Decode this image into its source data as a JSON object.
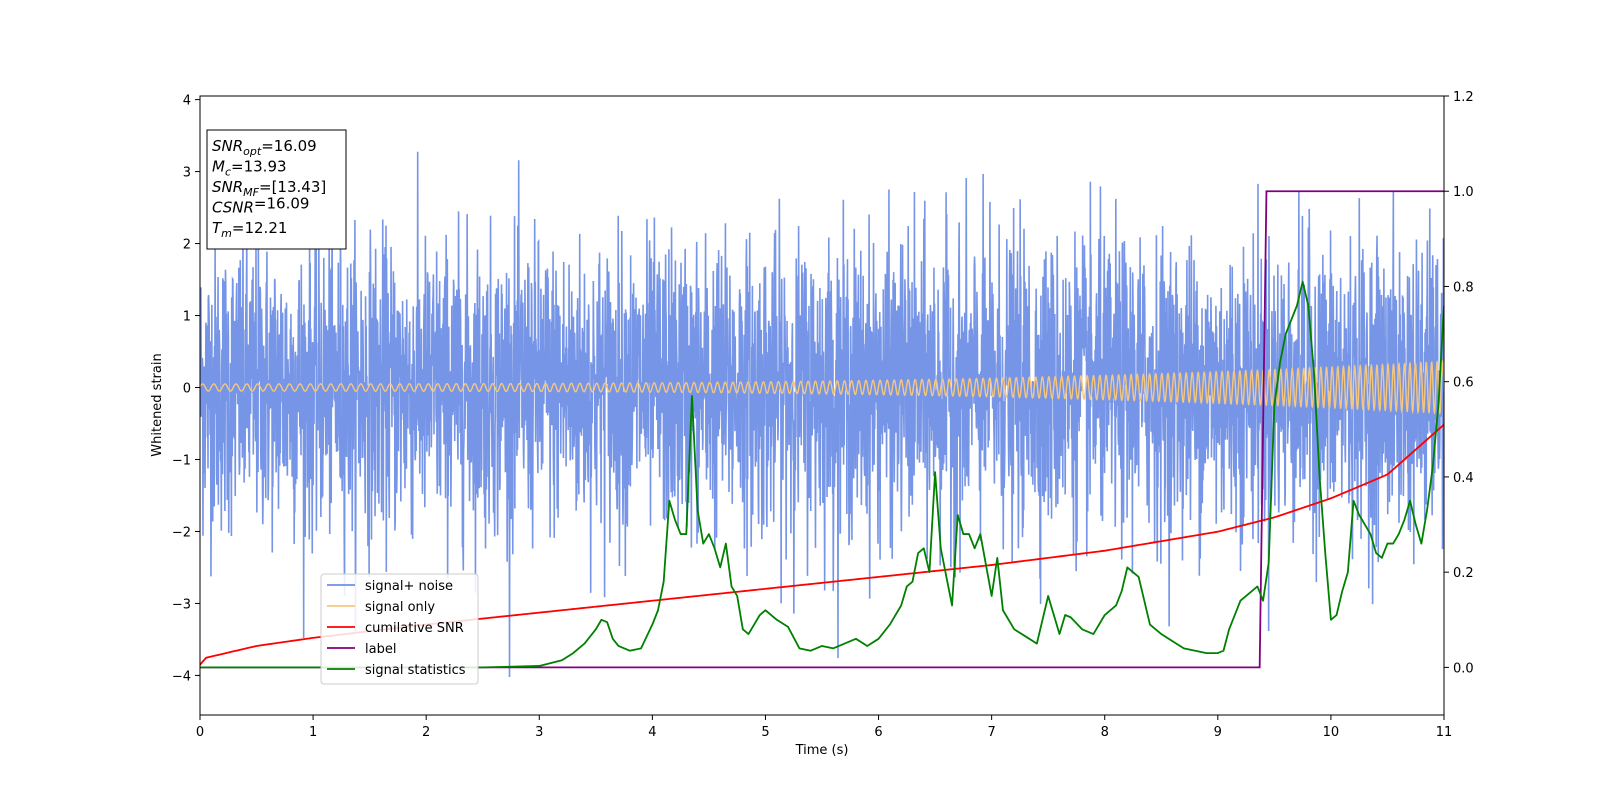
{
  "chart_data": {
    "type": "line",
    "xlabel": "Time (s)",
    "ylabel": "Whitened strain",
    "xlim": [
      0,
      11
    ],
    "ylim_left": [
      -4.55,
      4.05
    ],
    "ylim_right": [
      -0.1,
      1.2
    ],
    "x_ticks": [
      "0",
      "1",
      "2",
      "3",
      "4",
      "5",
      "6",
      "7",
      "8",
      "9",
      "10",
      "11"
    ],
    "y_ticks_left": [
      "−4",
      "−3",
      "−2",
      "−1",
      "0",
      "1",
      "2",
      "3",
      "4"
    ],
    "y_ticks_right": [
      "0.0",
      "0.2",
      "0.4",
      "0.6",
      "0.8",
      "1.0",
      "1.2"
    ],
    "info_box": [
      {
        "sym": "SNR",
        "sub": "opt",
        "rest": "=16.09"
      },
      {
        "sym": "M",
        "sub": "c",
        "rest": "=13.93"
      },
      {
        "sym": "SNR",
        "sub": "MF",
        "rest": "=[13.43]"
      },
      {
        "sym": "CSNR",
        "sub": "",
        "rest": "=16.09"
      },
      {
        "sym": "T",
        "sub": "m",
        "rest": "=12.21"
      }
    ],
    "legend": [
      {
        "label": "signal+ noise",
        "color": "#6f8fe6"
      },
      {
        "label": "signal only",
        "color": "#f5c77e"
      },
      {
        "label": "cumilative SNR",
        "color": "#ff0000"
      },
      {
        "label": "label",
        "color": "#800080"
      },
      {
        "label": "signal statistics",
        "color": "#008000"
      }
    ],
    "series": [
      {
        "name": "cumilative SNR",
        "axis": "right",
        "color": "#ff0000",
        "x": [
          0,
          0.05,
          0.5,
          1,
          2,
          3,
          4,
          5,
          6,
          7,
          8,
          9,
          9.5,
          10,
          10.5,
          11
        ],
        "y": [
          0.005,
          0.02,
          0.045,
          0.062,
          0.09,
          0.115,
          0.14,
          0.165,
          0.19,
          0.215,
          0.245,
          0.285,
          0.315,
          0.355,
          0.405,
          0.51
        ]
      },
      {
        "name": "label",
        "axis": "right",
        "color": "#800080",
        "x": [
          0,
          9.37,
          9.43,
          11
        ],
        "y": [
          0,
          0,
          1,
          1
        ]
      },
      {
        "name": "signal statistics",
        "axis": "right",
        "color": "#008000",
        "x": [
          0,
          2.5,
          3.0,
          3.2,
          3.3,
          3.4,
          3.5,
          3.55,
          3.6,
          3.65,
          3.7,
          3.8,
          3.9,
          4.0,
          4.05,
          4.1,
          4.15,
          4.2,
          4.25,
          4.3,
          4.35,
          4.4,
          4.45,
          4.5,
          4.55,
          4.6,
          4.65,
          4.7,
          4.75,
          4.8,
          4.85,
          4.9,
          4.95,
          5.0,
          5.1,
          5.2,
          5.3,
          5.4,
          5.5,
          5.6,
          5.7,
          5.8,
          5.9,
          6.0,
          6.1,
          6.2,
          6.25,
          6.3,
          6.35,
          6.4,
          6.45,
          6.5,
          6.55,
          6.6,
          6.65,
          6.7,
          6.75,
          6.8,
          6.85,
          6.9,
          7.0,
          7.05,
          7.1,
          7.2,
          7.3,
          7.4,
          7.5,
          7.6,
          7.65,
          7.7,
          7.8,
          7.9,
          8.0,
          8.1,
          8.15,
          8.2,
          8.3,
          8.4,
          8.5,
          8.6,
          8.7,
          8.8,
          8.9,
          9.0,
          9.05,
          9.1,
          9.2,
          9.3,
          9.35,
          9.4,
          9.45,
          9.5,
          9.55,
          9.6,
          9.7,
          9.75,
          9.8,
          9.85,
          9.9,
          9.95,
          10.0,
          10.05,
          10.1,
          10.15,
          10.2,
          10.25,
          10.3,
          10.35,
          10.4,
          10.45,
          10.5,
          10.55,
          10.6,
          10.65,
          10.7,
          10.75,
          10.8,
          10.85,
          10.9,
          10.95,
          11.0
        ],
        "y": [
          0,
          0,
          0.003,
          0.015,
          0.03,
          0.05,
          0.08,
          0.1,
          0.095,
          0.06,
          0.045,
          0.035,
          0.04,
          0.09,
          0.12,
          0.18,
          0.35,
          0.31,
          0.28,
          0.28,
          0.57,
          0.33,
          0.26,
          0.28,
          0.25,
          0.21,
          0.26,
          0.17,
          0.15,
          0.08,
          0.07,
          0.09,
          0.11,
          0.12,
          0.1,
          0.085,
          0.04,
          0.035,
          0.045,
          0.04,
          0.05,
          0.06,
          0.045,
          0.06,
          0.09,
          0.13,
          0.17,
          0.18,
          0.24,
          0.25,
          0.2,
          0.41,
          0.25,
          0.19,
          0.13,
          0.32,
          0.28,
          0.28,
          0.25,
          0.28,
          0.15,
          0.23,
          0.12,
          0.08,
          0.065,
          0.05,
          0.15,
          0.07,
          0.11,
          0.105,
          0.08,
          0.07,
          0.11,
          0.13,
          0.16,
          0.21,
          0.19,
          0.09,
          0.07,
          0.055,
          0.04,
          0.035,
          0.03,
          0.03,
          0.035,
          0.08,
          0.14,
          0.16,
          0.17,
          0.14,
          0.22,
          0.55,
          0.64,
          0.7,
          0.76,
          0.81,
          0.76,
          0.62,
          0.4,
          0.24,
          0.1,
          0.11,
          0.16,
          0.2,
          0.35,
          0.32,
          0.3,
          0.28,
          0.24,
          0.23,
          0.26,
          0.26,
          0.28,
          0.31,
          0.35,
          0.3,
          0.26,
          0.33,
          0.42,
          0.55,
          0.76
        ]
      },
      {
        "name": "signal only",
        "axis": "left",
        "color": "#f5c77e",
        "model": "chirp",
        "amplitude": [
          0.05,
          0.36
        ],
        "frequency_hz": [
          10.0,
          21.0
        ]
      },
      {
        "name": "signal+ noise",
        "axis": "left",
        "color": "#6f8fe6",
        "model": "gaussian-noise",
        "sigma": 1.0,
        "range": [
          -4.2,
          3.62
        ]
      }
    ]
  }
}
